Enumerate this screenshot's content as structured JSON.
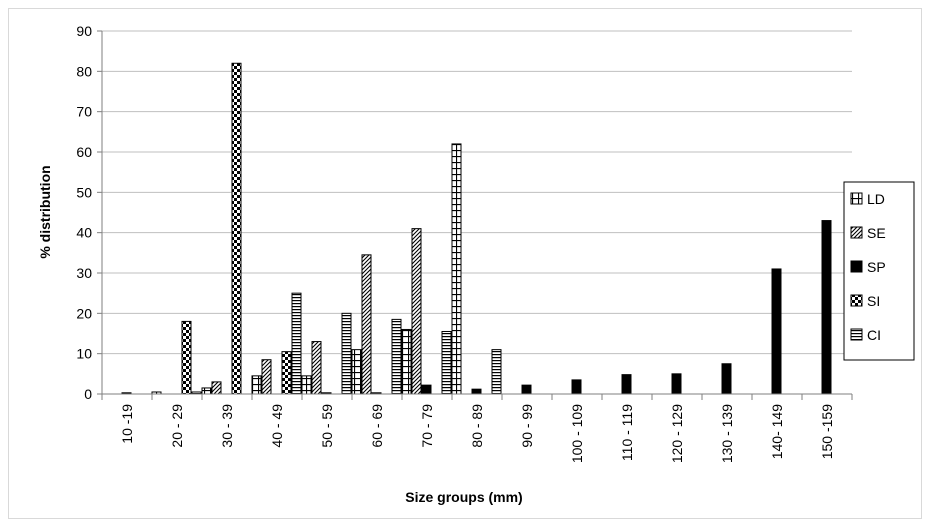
{
  "chart_data": {
    "type": "bar",
    "title": "",
    "xlabel": "Size groups (mm)",
    "ylabel": "% distribution",
    "ylim": [
      0,
      90
    ],
    "ytick_step": 10,
    "grid": true,
    "legend_position": "right",
    "categories": [
      "10 -19",
      "20 - 29",
      "30 - 39",
      "40 - 49",
      "50 - 59",
      "60 - 69",
      "70 - 79",
      "80 - 89",
      "90 - 99",
      "100 - 109",
      "110 - 119",
      "120 - 129",
      "130 - 139",
      "140- 149",
      "150 -159"
    ],
    "series": [
      {
        "name": "LD",
        "pattern": "grid",
        "values": [
          0,
          0.5,
          1.5,
          4.5,
          4.5,
          11,
          16,
          62,
          0,
          0,
          0,
          0,
          0,
          0,
          0
        ]
      },
      {
        "name": "SE",
        "pattern": "diagonal",
        "values": [
          0,
          0,
          3,
          8.5,
          13,
          34.5,
          41,
          0,
          0,
          0,
          0,
          0,
          0,
          0,
          0
        ]
      },
      {
        "name": "SP",
        "pattern": "solid",
        "values": [
          0.3,
          0,
          0,
          0,
          0.3,
          0.3,
          2.2,
          1.2,
          2.2,
          3.5,
          4.8,
          5,
          7.5,
          31,
          43
        ]
      },
      {
        "name": "SI",
        "pattern": "checker",
        "values": [
          0,
          18,
          82,
          10.5,
          0,
          0,
          0,
          0,
          0,
          0,
          0,
          0,
          0,
          0,
          0
        ]
      },
      {
        "name": "CI",
        "pattern": "horizontal",
        "values": [
          0,
          0.5,
          0,
          25,
          20,
          18.5,
          15.5,
          11,
          0,
          0,
          0,
          0,
          0,
          0,
          0
        ]
      }
    ]
  }
}
